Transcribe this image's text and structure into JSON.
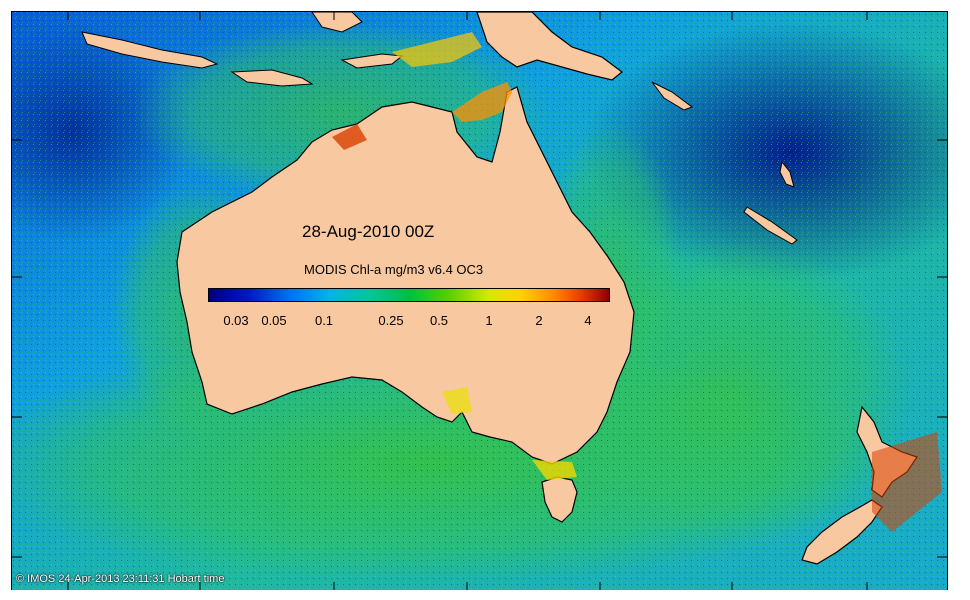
{
  "map": {
    "date_label": "28-Aug-2010 00Z",
    "colorbar": {
      "title": "MODIS Chl-a mg/m3 v6.4 OC3",
      "tick_labels": [
        "0.03",
        "0.05",
        "0.1",
        "0.25",
        "0.5",
        "1",
        "2",
        "4"
      ],
      "colors": [
        "#00007a",
        "#0070f0",
        "#00c89a",
        "#58d000",
        "#ffd200",
        "#e83c00",
        "#8c0000"
      ]
    },
    "footer": "© IMOS 24-Apr-2013 23:11:31 Hobart time",
    "land_color": "#f8c8a0",
    "ocean_deep_color": "#0030b0",
    "ocean_mid_color": "#00a8d8",
    "ocean_green_color": "#40c040"
  }
}
